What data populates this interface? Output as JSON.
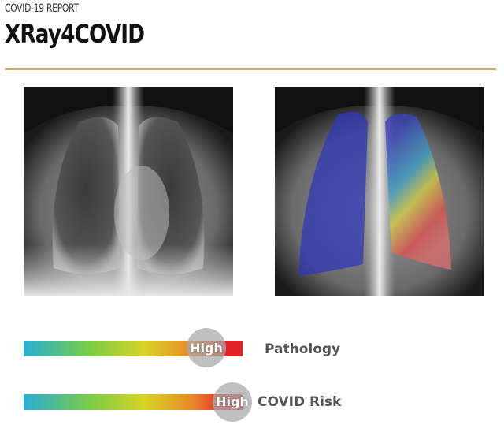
{
  "header": {
    "kicker": "COVID-19 REPORT",
    "title": "XRay4COVID"
  },
  "gauges": [
    {
      "level": "High",
      "label": "Pathology"
    },
    {
      "level": "High",
      "label": "COVID Risk"
    }
  ]
}
